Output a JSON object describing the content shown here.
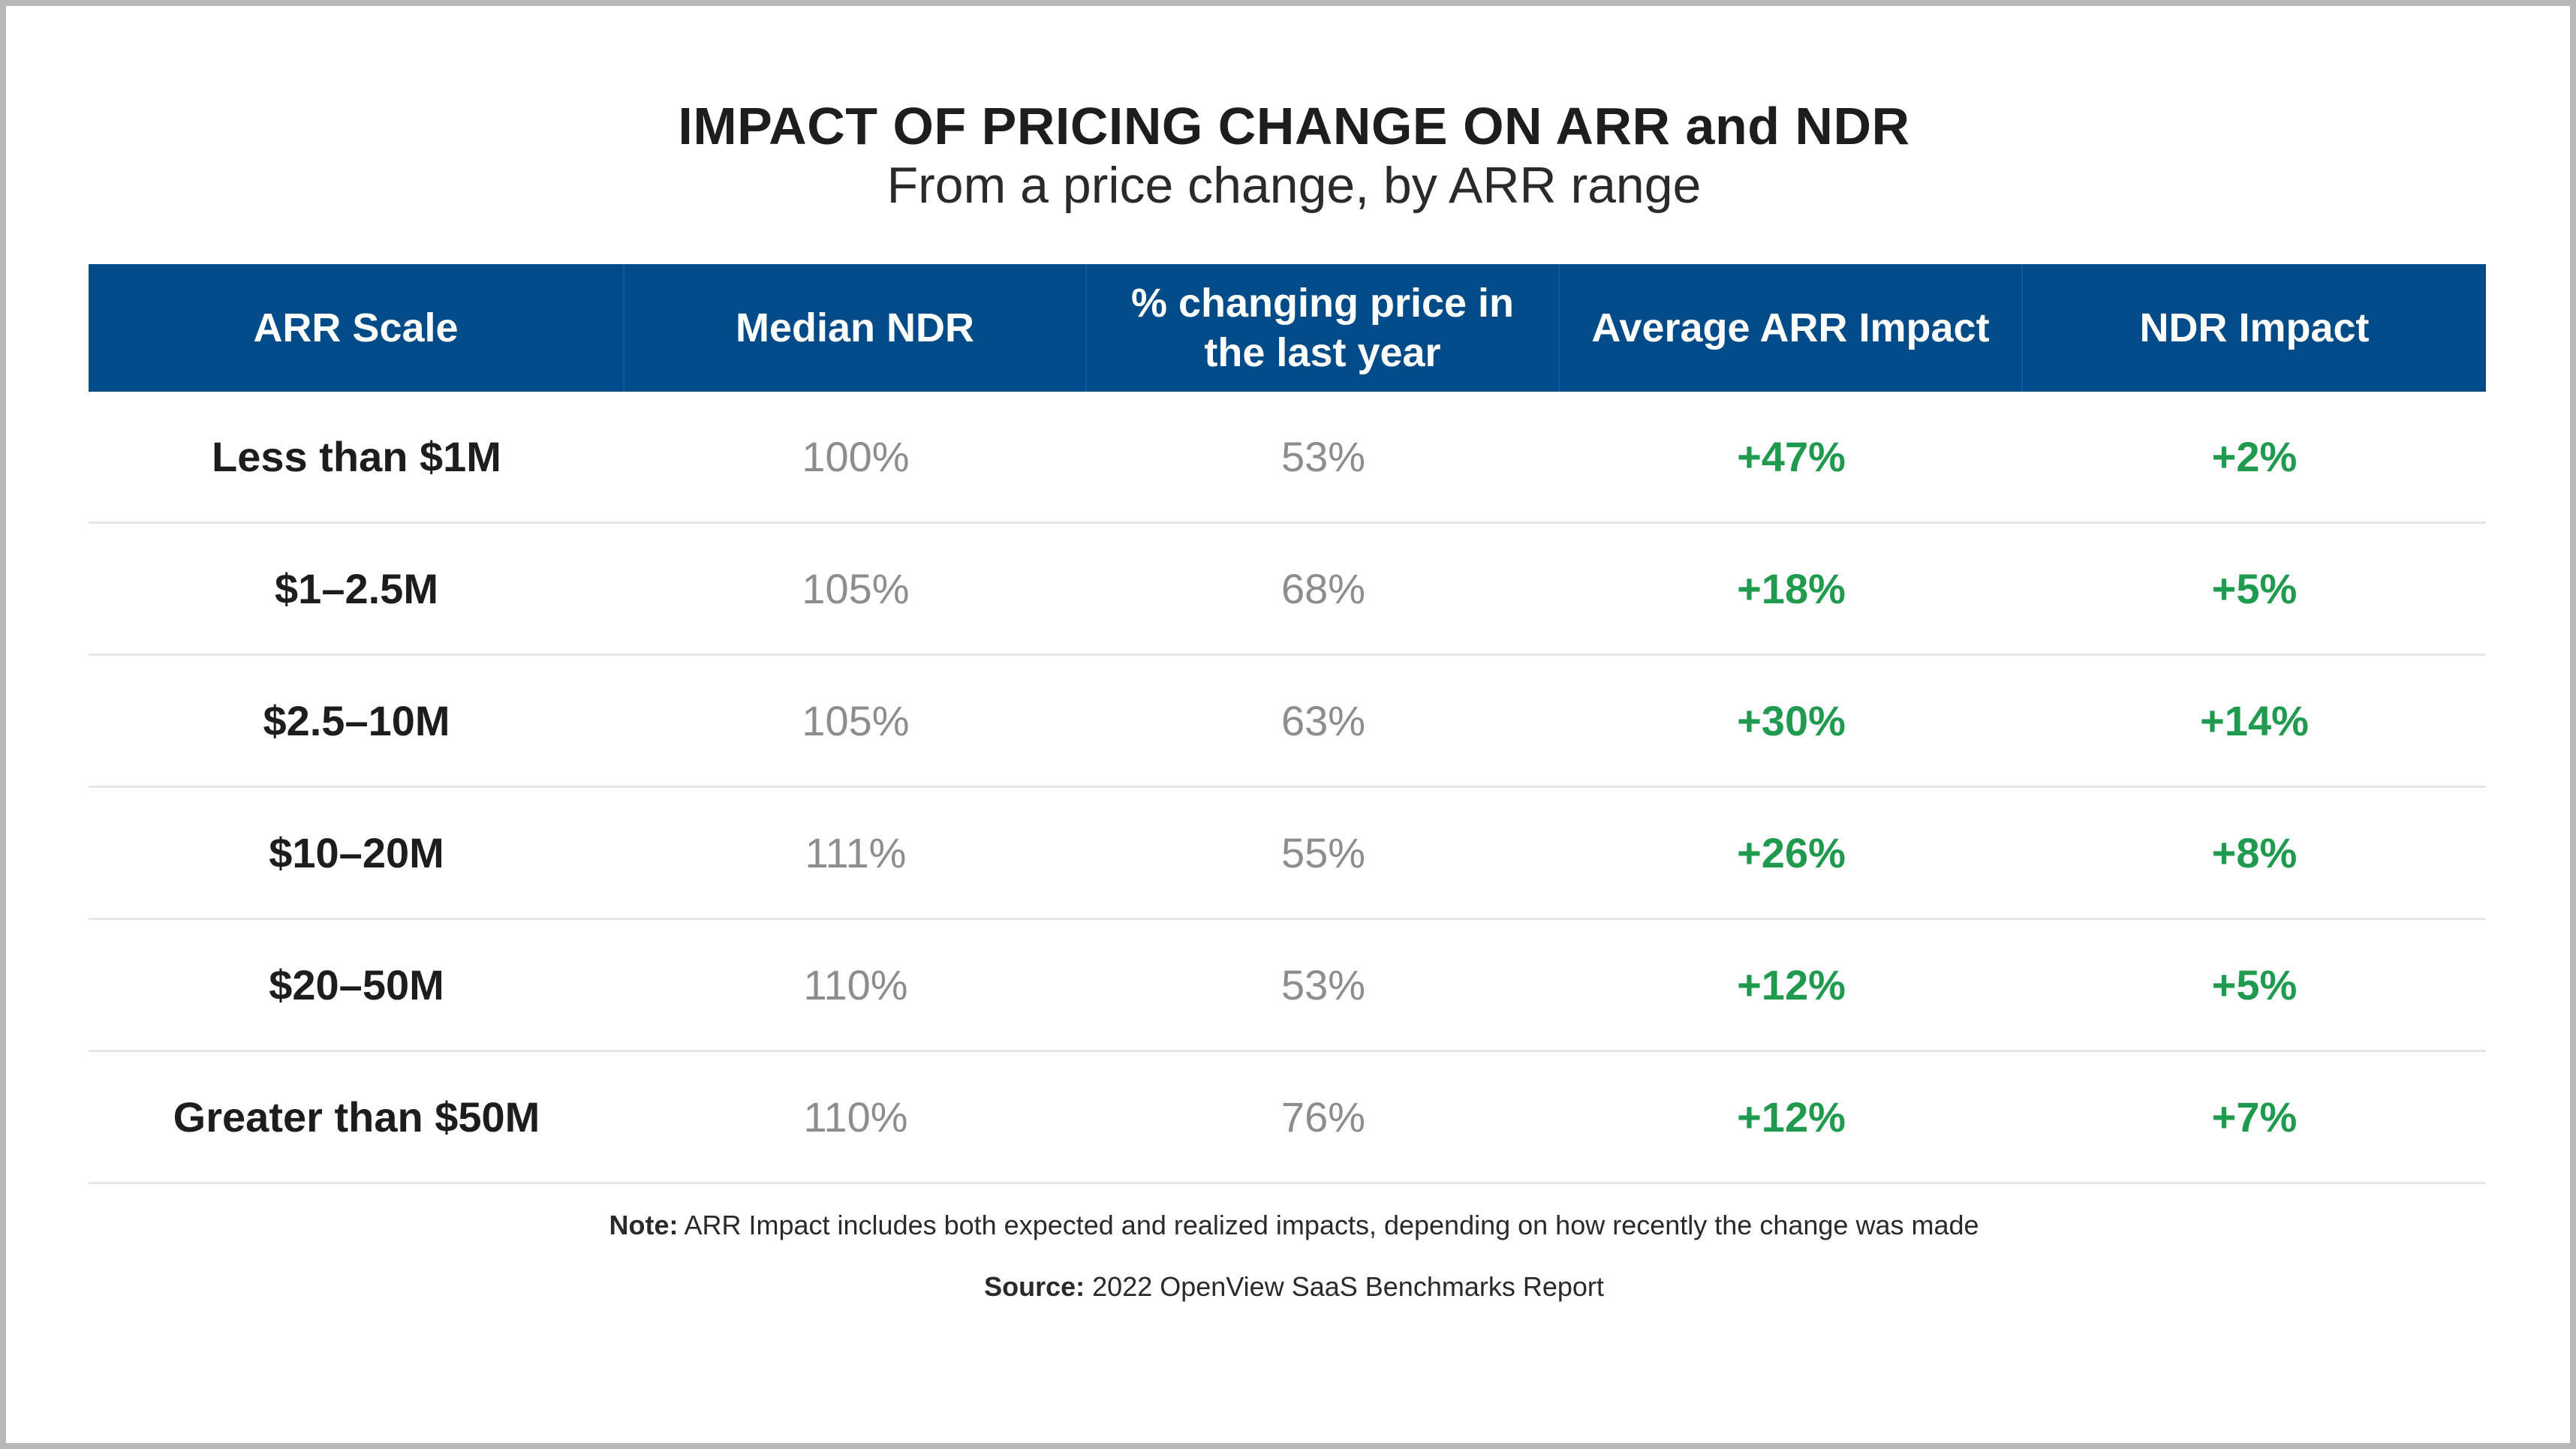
{
  "chart_data": {
    "type": "table",
    "title": "IMPACT OF PRICING CHANGE ON ARR and NDR",
    "subtitle": "From a price change, by ARR range",
    "columns": [
      "ARR Scale",
      "Median NDR",
      "% changing price in the last year",
      "Average ARR Impact",
      "NDR Impact"
    ],
    "rows": [
      {
        "scale": "Less than $1M",
        "median_ndr": "100%",
        "pct_changing": "53%",
        "arr_impact": "+47%",
        "ndr_impact": "+2%"
      },
      {
        "scale": "$1–2.5M",
        "median_ndr": "105%",
        "pct_changing": "68%",
        "arr_impact": "+18%",
        "ndr_impact": "+5%"
      },
      {
        "scale": "$2.5–10M",
        "median_ndr": "105%",
        "pct_changing": "63%",
        "arr_impact": "+30%",
        "ndr_impact": "+14%"
      },
      {
        "scale": "$10–20M",
        "median_ndr": "111%",
        "pct_changing": "55%",
        "arr_impact": "+26%",
        "ndr_impact": "+8%"
      },
      {
        "scale": "$20–50M",
        "median_ndr": "110%",
        "pct_changing": "53%",
        "arr_impact": "+12%",
        "ndr_impact": "+5%"
      },
      {
        "scale": "Greater than $50M",
        "median_ndr": "110%",
        "pct_changing": "76%",
        "arr_impact": "+12%",
        "ndr_impact": "+7%"
      }
    ],
    "note_label": "Note:",
    "note_text": " ARR Impact includes both expected and realized impacts, depending on how recently the change was made",
    "source_label": "Source:",
    "source_text": " 2022 OpenView SaaS Benchmarks Report",
    "colors": {
      "header_bg": "#014b88",
      "positive": "#1f9a4f",
      "muted": "#8d8d8d"
    }
  }
}
